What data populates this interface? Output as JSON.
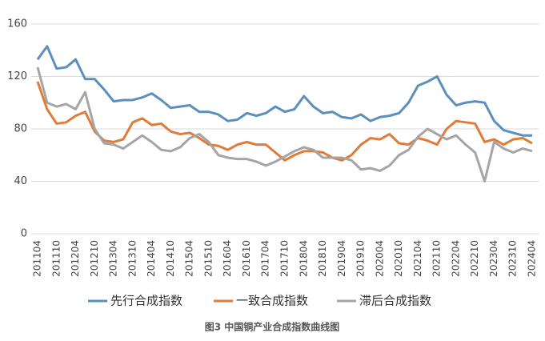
{
  "chart_data": {
    "type": "line",
    "caption": "图3 中国铜产业合成指数曲线图",
    "categories": [
      "201104",
      null,
      "201110",
      null,
      "201204",
      null,
      "201210",
      null,
      "201304",
      null,
      "201310",
      null,
      "201404",
      null,
      "201410",
      null,
      "201504",
      null,
      "201510",
      null,
      "201604",
      null,
      "201610",
      null,
      "201704",
      null,
      "201710",
      null,
      "201804",
      null,
      "201810",
      null,
      "201904",
      null,
      "201910",
      null,
      "202004",
      null,
      "202010",
      null,
      "202104",
      null,
      "202110",
      null,
      "202204",
      null,
      "202210",
      null,
      "202304",
      null,
      "202310",
      null,
      "202404"
    ],
    "series": [
      {
        "name": "先行合成指数",
        "color": "#5b8fbd",
        "values": [
          133,
          143,
          126,
          127,
          133,
          118,
          118,
          110,
          101,
          102,
          102,
          104,
          107,
          102,
          96,
          97,
          98,
          93,
          93,
          91,
          86,
          87,
          92,
          90,
          92,
          97,
          93,
          95,
          105,
          97,
          92,
          93,
          89,
          88,
          91,
          86,
          89,
          90,
          92,
          100,
          113,
          116,
          120,
          106,
          98,
          100,
          101,
          100,
          86,
          79,
          77,
          75,
          75
        ]
      },
      {
        "name": "一致合成指数",
        "color": "#e07b39",
        "values": [
          116,
          95,
          84,
          85,
          90,
          93,
          78,
          71,
          70,
          72,
          85,
          88,
          83,
          84,
          78,
          76,
          77,
          73,
          68,
          67,
          64,
          68,
          70,
          68,
          68,
          62,
          56,
          60,
          63,
          63,
          62,
          58,
          56,
          60,
          68,
          73,
          72,
          76,
          69,
          68,
          73,
          71,
          68,
          80,
          86,
          85,
          84,
          70,
          72,
          68,
          72,
          73,
          69
        ]
      },
      {
        "name": "滞后合成指数",
        "color": "#a5a5a5",
        "values": [
          127,
          100,
          97,
          99,
          95,
          108,
          80,
          69,
          68,
          65,
          70,
          75,
          70,
          64,
          63,
          66,
          73,
          76,
          70,
          60,
          58,
          57,
          57,
          55,
          52,
          55,
          59,
          63,
          66,
          64,
          58,
          58,
          58,
          56,
          49,
          50,
          48,
          52,
          60,
          64,
          74,
          80,
          76,
          72,
          75,
          68,
          62,
          40,
          70,
          65,
          62,
          65,
          63
        ]
      }
    ],
    "ylim": [
      0,
      160
    ],
    "yticks": [
      0,
      40,
      80,
      120,
      160
    ],
    "grid": true
  }
}
